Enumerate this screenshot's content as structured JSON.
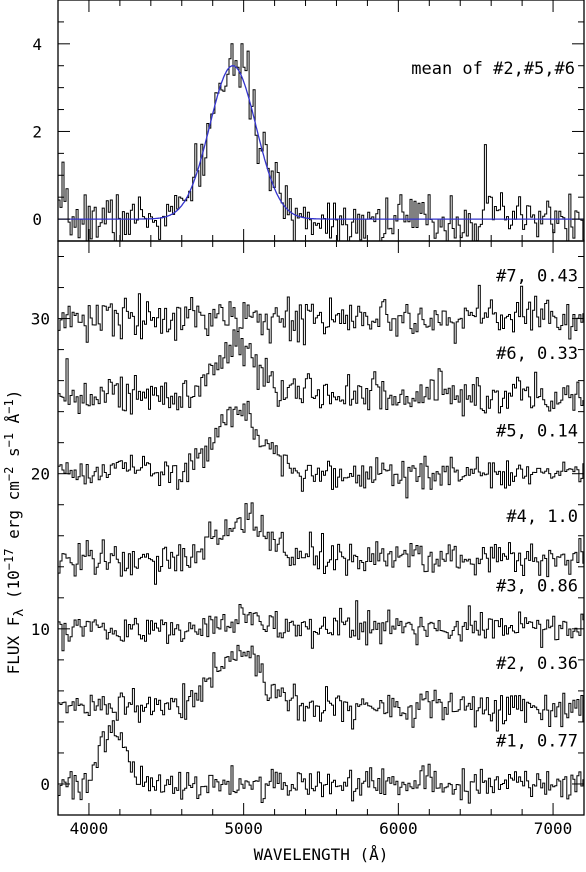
{
  "chart_data": [
    {
      "type": "line",
      "panel": "top",
      "annotation": "mean of #2,#5,#6",
      "xlim": [
        3800,
        7200
      ],
      "ylim": [
        -0.5,
        5.0
      ],
      "y_ticks": [
        0,
        2,
        4
      ],
      "y_tick_labels": [
        "0",
        "2",
        "4"
      ],
      "series": [
        {
          "kind": "spectrum",
          "color": "#000000",
          "baseline": 0,
          "line_center": 4930,
          "line_sigma": 150,
          "line_amplitude": 3.5,
          "noise": 0.3,
          "features": [
            {
              "x": 6560,
              "y": 1.7
            },
            {
              "x": 3830,
              "y": 1.3
            },
            {
              "x": 4920,
              "y": 4.0
            },
            {
              "x": 4980,
              "y": 4.0
            }
          ]
        },
        {
          "kind": "gaussian-fit",
          "color": "#3333cc",
          "baseline": 0,
          "center": 4930,
          "sigma": 150,
          "amplitude": 3.5
        }
      ]
    },
    {
      "type": "line",
      "panel": "bottom",
      "xlim": [
        3800,
        7200
      ],
      "ylim": [
        -2.0,
        35.0
      ],
      "x_ticks": [
        4000,
        5000,
        6000,
        7000
      ],
      "x_tick_labels": [
        "4000",
        "5000",
        "6000",
        "7000"
      ],
      "y_ticks": [
        0,
        10,
        20,
        30
      ],
      "y_tick_labels": [
        "0",
        "10",
        "20",
        "30"
      ],
      "xlabel": "WAVELENGTH (Å)",
      "ylabel": "FLUX F_λ (10^-17 erg cm^-2 s^-1 Å^-1)",
      "series": [
        {
          "name": "#1, 0.77",
          "baseline": 0,
          "noise": 0.5,
          "line_center": 4150,
          "line_sigma": 75,
          "line_amplitude": 3.4
        },
        {
          "name": "#2, 0.36",
          "baseline": 5,
          "noise": 0.5,
          "line_center": 4960,
          "line_sigma": 150,
          "line_amplitude": 3.5
        },
        {
          "name": "#3, 0.86",
          "baseline": 10,
          "noise": 0.5,
          "line_center": 5000,
          "line_sigma": 150,
          "line_amplitude": 0.8
        },
        {
          "name": "#4, 1.0",
          "baseline": 14.5,
          "noise": 0.6,
          "line_center": 4980,
          "line_sigma": 170,
          "line_amplitude": 2.2
        },
        {
          "name": "#5, 0.14",
          "baseline": 20,
          "noise": 0.5,
          "line_center": 4960,
          "line_sigma": 150,
          "line_amplitude": 4.0
        },
        {
          "name": "#6, 0.33",
          "baseline": 25,
          "noise": 0.6,
          "line_center": 4960,
          "line_sigma": 130,
          "line_amplitude": 3.0
        },
        {
          "name": "#7, 0.43",
          "baseline": 30,
          "noise": 0.6,
          "line_center": 5000,
          "line_sigma": 150,
          "line_amplitude": 0.0
        }
      ]
    }
  ]
}
